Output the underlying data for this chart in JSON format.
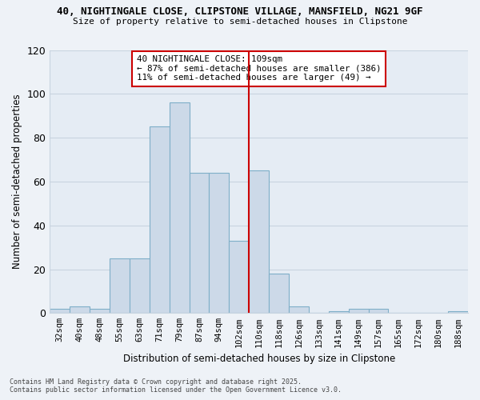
{
  "title_line1": "40, NIGHTINGALE CLOSE, CLIPSTONE VILLAGE, MANSFIELD, NG21 9GF",
  "title_line2": "Size of property relative to semi-detached houses in Clipstone",
  "xlabel": "Distribution of semi-detached houses by size in Clipstone",
  "ylabel": "Number of semi-detached properties",
  "categories": [
    "32sqm",
    "40sqm",
    "48sqm",
    "55sqm",
    "63sqm",
    "71sqm",
    "79sqm",
    "87sqm",
    "94sqm",
    "102sqm",
    "110sqm",
    "118sqm",
    "126sqm",
    "133sqm",
    "141sqm",
    "149sqm",
    "157sqm",
    "165sqm",
    "172sqm",
    "180sqm",
    "188sqm"
  ],
  "values": [
    2,
    3,
    2,
    25,
    25,
    85,
    96,
    64,
    64,
    33,
    65,
    18,
    3,
    0,
    1,
    2,
    2,
    0,
    0,
    0,
    1
  ],
  "bar_color": "#ccd9e8",
  "bar_edge_color": "#7fafc8",
  "ref_line_index": 10.0,
  "ref_line_color": "#cc0000",
  "annotation_title": "40 NIGHTINGALE CLOSE: 109sqm",
  "annotation_line2": "← 87% of semi-detached houses are smaller (386)",
  "annotation_line3": "11% of semi-detached houses are larger (49) →",
  "annotation_box_color": "#cc0000",
  "ylim": [
    0,
    120
  ],
  "yticks": [
    0,
    20,
    40,
    60,
    80,
    100,
    120
  ],
  "footer_line1": "Contains HM Land Registry data © Crown copyright and database right 2025.",
  "footer_line2": "Contains public sector information licensed under the Open Government Licence v3.0.",
  "bg_color": "#eef2f7",
  "plot_bg_color": "#e5ecf4",
  "grid_color": "#c8d4e0"
}
